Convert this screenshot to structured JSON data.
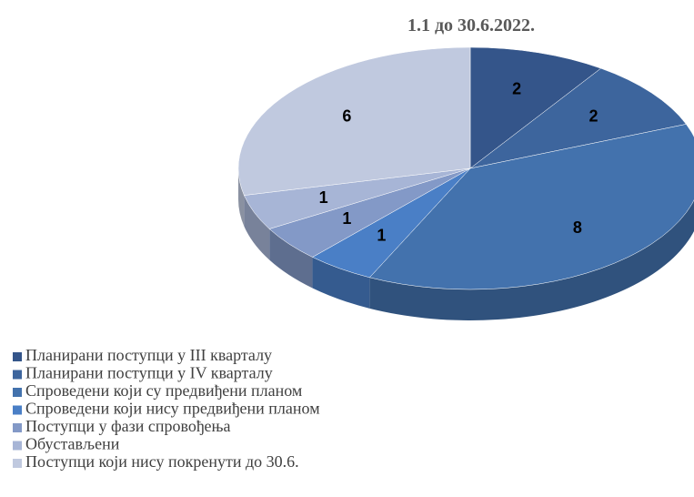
{
  "chart_data": {
    "type": "pie",
    "title": "1.1 до 30.6.2022.",
    "categories": [
      "Планирани поступци у III кварталу",
      "Планирани поступци у IV кварталу",
      "Спроведени који су предвиђени планом",
      "Спроведени који нису предвиђени планом",
      "Поступци у фази спровођења",
      "Обустављени",
      "Поступци који нису покренути до 30.6."
    ],
    "values": [
      2,
      2,
      8,
      1,
      1,
      1,
      6
    ],
    "colors": [
      "#34558a",
      "#3d659d",
      "#4372ad",
      "#4a7fc6",
      "#8399c7",
      "#a7b5d6",
      "#c0c9df"
    ],
    "legend": "bottom"
  }
}
